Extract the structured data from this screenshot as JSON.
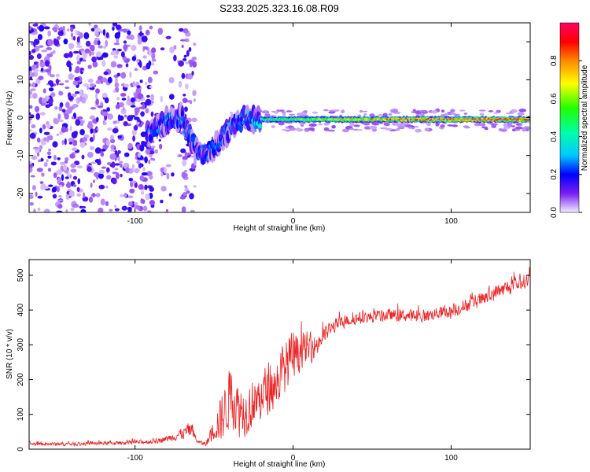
{
  "title": "S233.2025.323.16.08.R09",
  "colors": {
    "snr_line": "#ee2222",
    "axis": "#000000",
    "background": "#ffffff",
    "colorbar_stops": [
      "#f0e6ff",
      "#6a00e0",
      "#0000ff",
      "#00e5ff",
      "#00ff00",
      "#ffff00",
      "#ff8000",
      "#ff0000",
      "#ff0060"
    ]
  },
  "chart_data": [
    {
      "type": "heatmap",
      "name": "spectrogram",
      "xlabel": "Height of straight line (km)",
      "ylabel": "Frequency (Hz)",
      "xlim": [
        -167,
        150
      ],
      "ylim": [
        -25,
        25
      ],
      "xticks": [
        -100,
        0,
        100
      ],
      "xtick_labels": [
        "-100",
        "0",
        "100"
      ],
      "yticks": [
        -20,
        -10,
        0,
        10,
        20
      ],
      "ytick_labels": [
        "-20",
        "-10",
        "0",
        "10",
        "20"
      ],
      "ridge": {
        "description_free_values": true,
        "x": [
          -90,
          -80,
          -70,
          -60,
          -50,
          -40,
          -30,
          -20,
          -10,
          0,
          25,
          50,
          80,
          100,
          125,
          150
        ],
        "center_freq": [
          -4,
          -1,
          0,
          -10,
          -8,
          -3,
          0,
          -0.5,
          -0.5,
          -0.5,
          -0.5,
          -0.5,
          -0.5,
          -0.5,
          -0.5,
          -0.5
        ],
        "amplitude": [
          0.25,
          0.3,
          0.3,
          0.3,
          0.28,
          0.3,
          0.32,
          0.45,
          0.5,
          0.55,
          0.65,
          0.75,
          0.85,
          0.85,
          0.9,
          0.9
        ]
      },
      "colorbar": {
        "label": "Normalized spectral amplitude",
        "range": [
          0,
          1
        ],
        "ticks": [
          0.0,
          0.2,
          0.4,
          0.6,
          0.8
        ],
        "tick_labels": [
          "0.0",
          "0.2",
          "0.4",
          "0.6",
          "0.8"
        ]
      }
    },
    {
      "type": "line",
      "name": "snr",
      "xlabel": "Height of straight line (km)",
      "ylabel": "SNR (10 * v/v)",
      "xlim": [
        -167,
        150
      ],
      "ylim": [
        0,
        545
      ],
      "xticks": [
        -100,
        0,
        100
      ],
      "xtick_labels": [
        "-100",
        "0",
        "100"
      ],
      "yticks": [
        0,
        100,
        200,
        300,
        400,
        500
      ],
      "ytick_labels": [
        "0",
        "100",
        "200",
        "300",
        "400",
        "500"
      ],
      "series": [
        {
          "name": "SNR",
          "x": [
            -167,
            -140,
            -110,
            -90,
            -80,
            -70,
            -65,
            -60,
            -55,
            -50,
            -45,
            -40,
            -35,
            -30,
            -25,
            -20,
            -15,
            -10,
            -5,
            0,
            5,
            10,
            15,
            20,
            25,
            30,
            40,
            50,
            60,
            70,
            80,
            90,
            100,
            110,
            120,
            130,
            140,
            150
          ],
          "values": [
            15,
            15,
            18,
            22,
            30,
            45,
            55,
            20,
            15,
            60,
            90,
            150,
            120,
            110,
            130,
            150,
            180,
            190,
            240,
            260,
            280,
            290,
            300,
            330,
            350,
            365,
            375,
            380,
            385,
            385,
            380,
            390,
            395,
            415,
            430,
            455,
            470,
            490
          ],
          "noise_amp": [
            6,
            6,
            6,
            8,
            10,
            20,
            30,
            6,
            8,
            40,
            80,
            100,
            90,
            80,
            80,
            90,
            80,
            80,
            90,
            90,
            60,
            50,
            40,
            30,
            25,
            20,
            20,
            20,
            20,
            20,
            22,
            20,
            22,
            22,
            25,
            25,
            25,
            25
          ]
        }
      ]
    }
  ]
}
